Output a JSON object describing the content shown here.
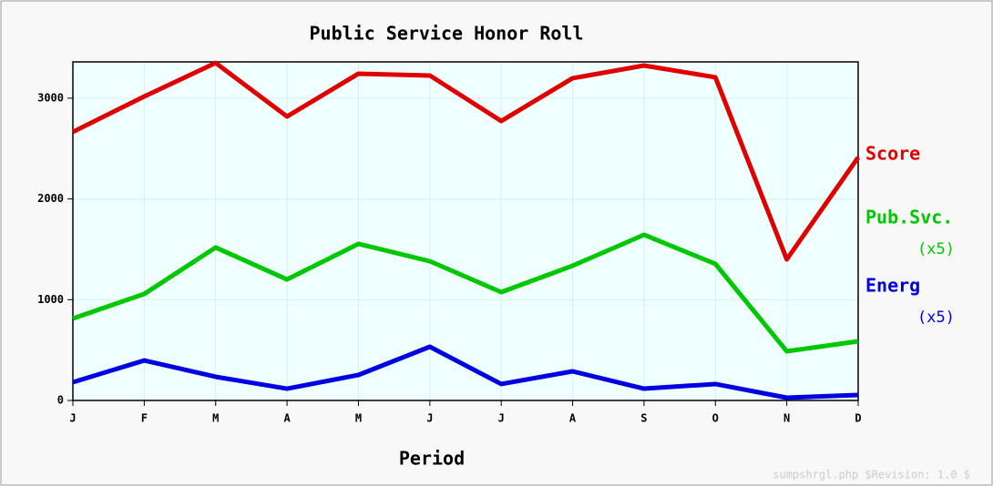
{
  "chart_data": {
    "type": "line",
    "title": "Public Service Honor Roll",
    "x_label": "Period",
    "categories": [
      "J",
      "F",
      "M",
      "A",
      "M",
      "J",
      "J",
      "A",
      "S",
      "O",
      "N",
      "D"
    ],
    "series": [
      {
        "name": "Score",
        "color": "#e00000",
        "values": [
          2665,
          3017,
          3350,
          2818,
          3243,
          3225,
          2773,
          3198,
          3324,
          3207,
          1400,
          2412
        ]
      },
      {
        "name": "Pub.Svc.",
        "color": "#00c800",
        "note": "(x5)",
        "values": [
          813,
          1057,
          1518,
          1201,
          1554,
          1382,
          1075,
          1337,
          1644,
          1355,
          488,
          587
        ]
      },
      {
        "name": "Energ",
        "color": "#0000e0",
        "note": "(x5)",
        "values": [
          181,
          397,
          235,
          117,
          253,
          533,
          163,
          289,
          117,
          163,
          27,
          54
        ]
      }
    ],
    "ylim": [
      0,
      3360
    ],
    "yticks": [
      0,
      1000,
      2000,
      3000
    ],
    "grid": true,
    "footer": "sumpshrgl.php $Revision: 1.0 $"
  }
}
